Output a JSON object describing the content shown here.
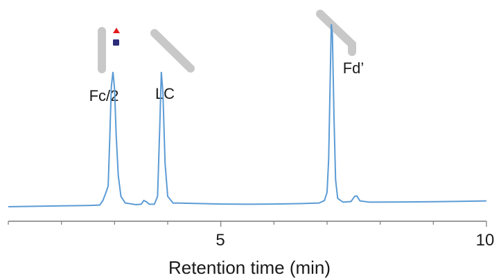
{
  "chart_data": {
    "type": "line",
    "xlabel": "Retention time (min)",
    "ylabel": "",
    "xlim": [
      1,
      10
    ],
    "x_ticks_labeled": [
      5,
      10
    ],
    "grid": false,
    "series_color": "#5b9bd5",
    "series": [
      {
        "points": [
          [
            1.0,
            0.07
          ],
          [
            1.5,
            0.072
          ],
          [
            2.0,
            0.074
          ],
          [
            2.5,
            0.076
          ],
          [
            2.72,
            0.078
          ],
          [
            2.78,
            0.1
          ],
          [
            2.84,
            0.14
          ],
          [
            2.88,
            0.17
          ],
          [
            2.91,
            0.4
          ],
          [
            2.94,
            0.65
          ],
          [
            2.97,
            0.72
          ],
          [
            3.0,
            0.64
          ],
          [
            3.03,
            0.42
          ],
          [
            3.07,
            0.22
          ],
          [
            3.12,
            0.12
          ],
          [
            3.2,
            0.088
          ],
          [
            3.4,
            0.08
          ],
          [
            3.5,
            0.082
          ],
          [
            3.55,
            0.1
          ],
          [
            3.6,
            0.094
          ],
          [
            3.65,
            0.082
          ],
          [
            3.75,
            0.082
          ],
          [
            3.81,
            0.12
          ],
          [
            3.85,
            0.45
          ],
          [
            3.88,
            0.72
          ],
          [
            3.91,
            0.62
          ],
          [
            3.95,
            0.28
          ],
          [
            4.0,
            0.12
          ],
          [
            4.1,
            0.088
          ],
          [
            4.5,
            0.086
          ],
          [
            5.0,
            0.083
          ],
          [
            5.5,
            0.082
          ],
          [
            6.0,
            0.083
          ],
          [
            6.5,
            0.085
          ],
          [
            6.85,
            0.088
          ],
          [
            6.95,
            0.1
          ],
          [
            7.0,
            0.14
          ],
          [
            7.03,
            0.3
          ],
          [
            7.06,
            0.7
          ],
          [
            7.08,
            0.95
          ],
          [
            7.1,
            0.9
          ],
          [
            7.13,
            0.5
          ],
          [
            7.16,
            0.2
          ],
          [
            7.2,
            0.11
          ],
          [
            7.3,
            0.092
          ],
          [
            7.45,
            0.095
          ],
          [
            7.52,
            0.12
          ],
          [
            7.56,
            0.122
          ],
          [
            7.62,
            0.098
          ],
          [
            7.8,
            0.092
          ],
          [
            8.5,
            0.093
          ],
          [
            9.0,
            0.094
          ],
          [
            9.5,
            0.096
          ],
          [
            10.0,
            0.098
          ]
        ]
      }
    ],
    "annotations": [
      {
        "text": "Fc/2",
        "x": 2.8
      },
      {
        "text": "LC",
        "x": 3.8
      },
      {
        "text": "Fd’",
        "x": 7.3
      }
    ]
  },
  "icons": {
    "fc_icon": "fc-fragment-icon",
    "lc_icon": "light-chain-icon",
    "fd_icon": "fd-fragment-icon",
    "bar_color": "#c8c8c8",
    "triangle_color": "#e31a1c",
    "square_color": "#2c2c7a"
  }
}
